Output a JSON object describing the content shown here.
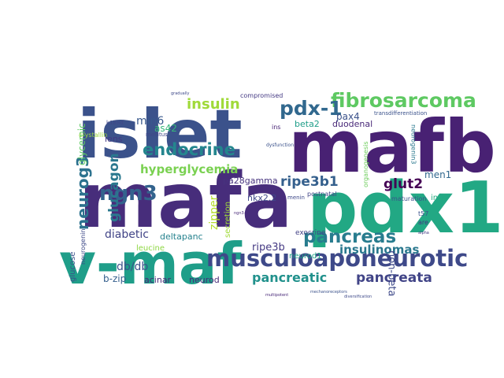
{
  "words": [
    {
      "text": "islet",
      "color": "#3b528b"
    },
    {
      "text": "mafb",
      "color": "#482173"
    },
    {
      "text": "mafa",
      "color": "#472d7b"
    },
    {
      "text": "pdx1",
      "color": "#22a884"
    },
    {
      "text": "v-maf",
      "color": "#1f9e89"
    },
    {
      "text": "musculoaponeurotic",
      "color": "#3e4989"
    },
    {
      "text": "fibrosarcoma",
      "color": "#5ec962"
    },
    {
      "text": "pdx-1",
      "color": "#31688e"
    },
    {
      "text": "neurog3",
      "color": "#2c728e"
    },
    {
      "text": "ngn3",
      "color": "#33638d"
    },
    {
      "text": "endocrine",
      "color": "#24868e"
    },
    {
      "text": "pancreas",
      "color": "#287c8e"
    },
    {
      "text": "pancreata",
      "color": "#414487"
    },
    {
      "text": "glucagon",
      "color": "#2a788e"
    },
    {
      "text": "insulin",
      "color": "#a0da39"
    },
    {
      "text": "ripe3b1",
      "color": "#35608d"
    },
    {
      "text": "hyperglycemia",
      "color": "#7ad151"
    },
    {
      "text": "pancreatic",
      "color": "#21918c"
    },
    {
      "text": "insulinomas",
      "color": "#2a788e"
    },
    {
      "text": "glut2",
      "color": "#440154"
    },
    {
      "text": "db/db",
      "color": "#3b528b"
    },
    {
      "text": "min6",
      "color": "#38588c"
    },
    {
      "text": "diabetic",
      "color": "#414487"
    },
    {
      "text": "zipper",
      "color": "#b5de2b"
    },
    {
      "text": "ripe3b",
      "color": "#443983"
    },
    {
      "text": "non-beta",
      "color": "#3e4989"
    },
    {
      "text": "glycemic",
      "color": "#5ec962"
    },
    {
      "text": "b-zip",
      "color": "#355f8d"
    },
    {
      "text": "acinar",
      "color": "#482878"
    },
    {
      "text": "neurod",
      "color": "#472c7a"
    },
    {
      "text": "men1",
      "color": "#31688e"
    },
    {
      "text": "beta2",
      "color": "#1f9e89"
    },
    {
      "text": "duodenal",
      "color": "#482878"
    },
    {
      "text": "pax4",
      "color": "#3b528b"
    },
    {
      "text": "as42",
      "color": "#35b779"
    },
    {
      "text": "lens",
      "color": "#443983"
    },
    {
      "text": "pa28gamma",
      "color": "#46337e"
    },
    {
      "text": "nkx2.2",
      "color": "#3e4989"
    },
    {
      "text": "deltapanc",
      "color": "#26828e"
    },
    {
      "text": "leucine",
      "color": "#8fd744"
    },
    {
      "text": "secretion",
      "color": "#a0da39"
    },
    {
      "text": "neurod1",
      "color": "#20a386"
    },
    {
      "text": "ins2",
      "color": "#25ac82"
    },
    {
      "text": "glucose",
      "color": "#3b528b"
    },
    {
      "text": "exocrine",
      "color": "#424086"
    },
    {
      "text": "neurogenin",
      "color": "#3e4a89"
    },
    {
      "text": "crystallin",
      "color": "#9bd93c"
    },
    {
      "text": "neurogenin3",
      "color": "#2a788e"
    },
    {
      "text": "organogenesis",
      "color": "#6ccd5a"
    },
    {
      "text": "compromised",
      "color": "#443983"
    },
    {
      "text": "postnatal",
      "color": "#414487"
    },
    {
      "text": "maturation",
      "color": "#3b528b"
    },
    {
      "text": "k188d",
      "color": "#3f4788"
    },
    {
      "text": "mellitus",
      "color": "#404588"
    },
    {
      "text": "ins",
      "color": "#482475"
    },
    {
      "text": "menin",
      "color": "#3e4989"
    },
    {
      "text": "transdifferentiation",
      "color": "#3b528b"
    },
    {
      "text": "t57",
      "color": "#3b528b"
    },
    {
      "text": "are",
      "color": "#453781"
    },
    {
      "text": "dysfunction",
      "color": "#3b528b"
    },
    {
      "text": "gradually",
      "color": "#3e4989"
    },
    {
      "text": "multipotent",
      "color": "#482878"
    },
    {
      "text": "mechanoreceptors",
      "color": "#3b528b"
    },
    {
      "text": "diversification",
      "color": "#3e4989"
    },
    {
      "text": "alpha",
      "color": "#443983"
    },
    {
      "text": "ngn3+",
      "color": "#482878"
    }
  ]
}
